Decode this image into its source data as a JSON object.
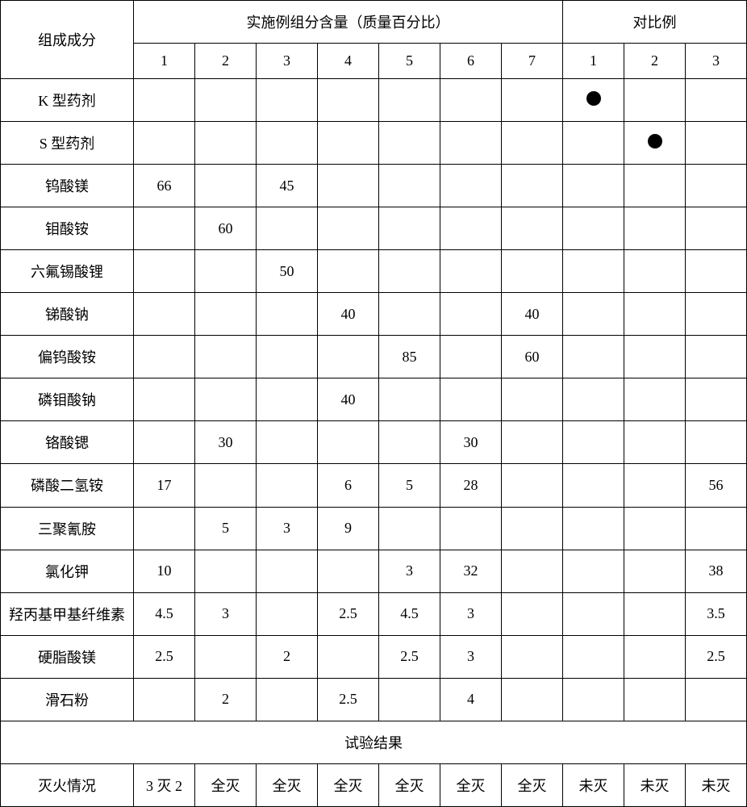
{
  "table": {
    "header": {
      "col1": "组成成分",
      "col2": "实施例组分含量（质量百分比）",
      "col3": "对比例",
      "nums": [
        "1",
        "2",
        "3",
        "4",
        "5",
        "6",
        "7",
        "1",
        "2",
        "3"
      ]
    },
    "rows": [
      {
        "label": "K 型药剂",
        "cells": [
          "",
          "",
          "",
          "",
          "",
          "",
          "",
          "●",
          "",
          ""
        ]
      },
      {
        "label": "S 型药剂",
        "cells": [
          "",
          "",
          "",
          "",
          "",
          "",
          "",
          "",
          "●",
          ""
        ]
      },
      {
        "label": "钨酸镁",
        "cells": [
          "66",
          "",
          "45",
          "",
          "",
          "",
          "",
          "",
          "",
          ""
        ]
      },
      {
        "label": "钼酸铵",
        "cells": [
          "",
          "60",
          "",
          "",
          "",
          "",
          "",
          "",
          "",
          ""
        ]
      },
      {
        "label": "六氟锡酸锂",
        "cells": [
          "",
          "",
          "50",
          "",
          "",
          "",
          "",
          "",
          "",
          ""
        ]
      },
      {
        "label": "锑酸钠",
        "cells": [
          "",
          "",
          "",
          "40",
          "",
          "",
          "40",
          "",
          "",
          ""
        ]
      },
      {
        "label": "偏钨酸铵",
        "cells": [
          "",
          "",
          "",
          "",
          "85",
          "",
          "60",
          "",
          "",
          ""
        ]
      },
      {
        "label": "磷钼酸钠",
        "cells": [
          "",
          "",
          "",
          "40",
          "",
          "",
          "",
          "",
          "",
          ""
        ]
      },
      {
        "label": "铬酸锶",
        "cells": [
          "",
          "30",
          "",
          "",
          "",
          "30",
          "",
          "",
          "",
          ""
        ]
      },
      {
        "label": "磷酸二氢铵",
        "cells": [
          "17",
          "",
          "",
          "6",
          "5",
          "28",
          "",
          "",
          "",
          "56"
        ]
      },
      {
        "label": "三聚氰胺",
        "cells": [
          "",
          "5",
          "3",
          "9",
          "",
          "",
          "",
          "",
          "",
          ""
        ]
      },
      {
        "label": "氯化钾",
        "cells": [
          "10",
          "",
          "",
          "",
          "3",
          "32",
          "",
          "",
          "",
          "38"
        ]
      },
      {
        "label": "羟丙基甲基纤维素",
        "cells": [
          "4.5",
          "3",
          "",
          "2.5",
          "4.5",
          "3",
          "",
          "",
          "",
          "3.5"
        ]
      },
      {
        "label": "硬脂酸镁",
        "cells": [
          "2.5",
          "",
          "2",
          "",
          "2.5",
          "3",
          "",
          "",
          "",
          "2.5"
        ]
      },
      {
        "label": "滑石粉",
        "cells": [
          "",
          "2",
          "",
          "2.5",
          "",
          "4",
          "",
          "",
          "",
          ""
        ]
      }
    ],
    "results_header": "试验结果",
    "results_row": {
      "label": "灭火情况",
      "cells": [
        "3 灭 2",
        "全灭",
        "全灭",
        "全灭",
        "全灭",
        "全灭",
        "全灭",
        "未灭",
        "未灭",
        "未灭"
      ]
    }
  }
}
